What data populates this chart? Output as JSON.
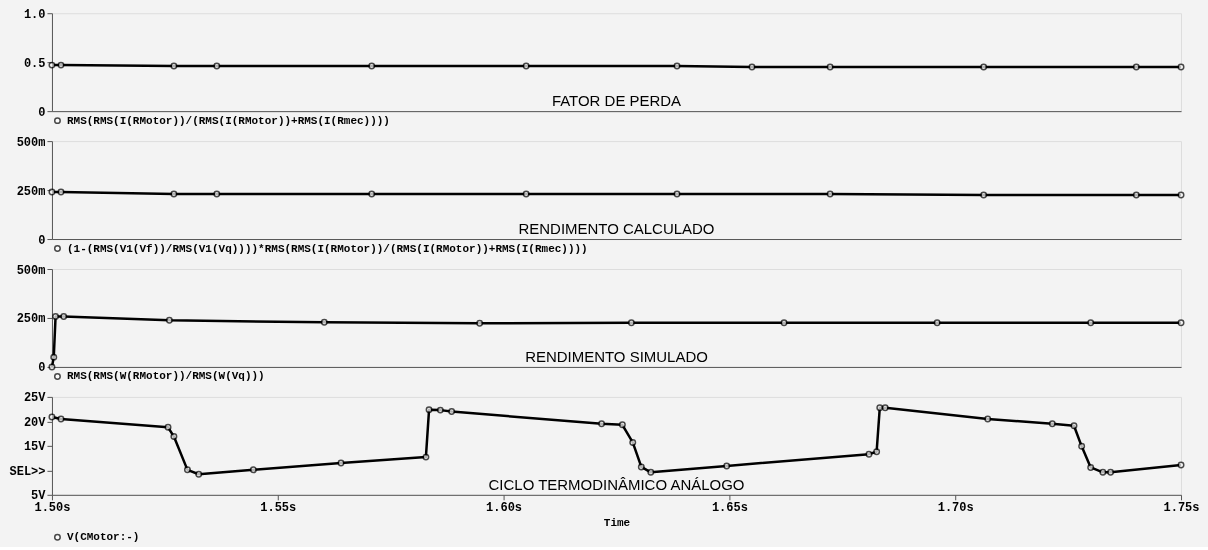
{
  "chart_data": [
    {
      "type": "line",
      "title": "FATOR DE PERDA",
      "x": [
        1.5,
        1.502,
        1.527,
        1.5365,
        1.5708,
        1.605,
        1.6384,
        1.655,
        1.6723,
        1.7063,
        1.7401,
        1.75
      ],
      "series": [
        {
          "name": "RMS(RMS(I(RMotor))/(RMS(I(RMotor))+RMS(I(Rmec))))",
          "color": "#000000",
          "values": [
            0.47,
            0.47,
            0.46,
            0.46,
            0.46,
            0.46,
            0.46,
            0.45,
            0.45,
            0.45,
            0.45,
            0.45
          ]
        }
      ],
      "xlim": [
        1.5,
        1.75
      ],
      "ylim": [
        0,
        1
      ],
      "yticks": [
        0,
        0.5,
        {
          "value": 1,
          "label": "1.0"
        }
      ],
      "tick_labels": "y",
      "grid": false,
      "legend": "bottom",
      "marker": "circle",
      "line_style": "solid"
    },
    {
      "type": "line",
      "title": "RENDIMENTO CALCULADO",
      "x": [
        1.5,
        1.502,
        1.527,
        1.5365,
        1.5708,
        1.605,
        1.6384,
        1.6723,
        1.7063,
        1.7401,
        1.75
      ],
      "series": [
        {
          "name": "(1-(RMS(V1(Vf))/RMS(V1(Vq))))*RMS(RMS(I(RMotor))/(RMS(I(RMotor))+RMS(I(Rmec))))",
          "color": "#000000",
          "values": [
            240,
            240,
            230,
            230,
            230,
            230,
            230,
            230,
            225,
            225,
            225
          ]
        }
      ],
      "xlim": [
        1.5,
        1.75
      ],
      "ylim": [
        0,
        500
      ],
      "yticks": [
        0,
        {
          "value": 250,
          "label": "250m"
        },
        {
          "value": 500,
          "label": "500m"
        }
      ],
      "tick_labels": "y",
      "grid": false,
      "legend": "bottom",
      "marker": "circle",
      "line_style": "solid"
    },
    {
      "type": "line",
      "title": "RENDIMENTO SIMULADO",
      "x": [
        1.5,
        1.5004,
        1.5008,
        1.5026,
        1.526,
        1.5603,
        1.5947,
        1.6283,
        1.6621,
        1.696,
        1.73,
        1.75
      ],
      "series": [
        {
          "name": "RMS(RMS(W(RMotor))/RMS(W(Vq)))",
          "color": "#000000",
          "values": [
            0,
            50,
            257,
            257,
            238,
            228,
            223,
            225,
            225,
            225,
            225,
            225
          ]
        }
      ],
      "xlim": [
        1.5,
        1.75
      ],
      "ylim": [
        0,
        500
      ],
      "yticks": [
        0,
        {
          "value": 250,
          "label": "250m"
        },
        {
          "value": 500,
          "label": "500m"
        }
      ],
      "tick_labels": "y",
      "grid": false,
      "legend": "bottom",
      "marker": "circle",
      "line_style": "solid"
    },
    {
      "type": "line",
      "title": "CICLO TERMODINÂMICO ANÁLOGO",
      "xlabel": "Time",
      "x": [
        1.5,
        1.502,
        1.5257,
        1.527,
        1.53,
        1.5325,
        1.5446,
        1.564,
        1.5828,
        1.5835,
        1.586,
        1.5885,
        1.6217,
        1.6263,
        1.6286,
        1.6305,
        1.6326,
        1.6494,
        1.6809,
        1.6826,
        1.6833,
        1.6845,
        1.7072,
        1.7215,
        1.7263,
        1.728,
        1.73,
        1.7327,
        1.7344,
        1.75
      ],
      "series": [
        {
          "name": "V(CMotor:-)",
          "color": "#000000",
          "values": [
            20.9,
            20.5,
            18.8,
            16.9,
            10.1,
            9.2,
            10.1,
            11.5,
            12.7,
            22.4,
            22.3,
            22.0,
            19.5,
            19.3,
            15.7,
            10.7,
            9.6,
            10.9,
            13.3,
            13.8,
            22.8,
            22.8,
            20.5,
            19.5,
            19.1,
            14.9,
            10.6,
            9.6,
            9.6,
            11.1
          ]
        }
      ],
      "xlim": [
        1.5,
        1.75
      ],
      "ylim": [
        5,
        25
      ],
      "yticks": [
        {
          "value": 5,
          "label": "5V"
        },
        {
          "value": 10,
          "label": "SEL>>"
        },
        {
          "value": 15,
          "label": "15V"
        },
        {
          "value": 20,
          "label": "20V"
        },
        {
          "value": 25,
          "label": "25V"
        }
      ],
      "xticks": [
        {
          "value": 1.5,
          "label": "1.50s"
        },
        {
          "value": 1.55,
          "label": "1.55s"
        },
        {
          "value": 1.6,
          "label": "1.60s"
        },
        {
          "value": 1.65,
          "label": "1.65s"
        },
        {
          "value": 1.7,
          "label": "1.70s"
        },
        {
          "value": 1.75,
          "label": "1.75s"
        }
      ],
      "grid": false,
      "legend": "bottom",
      "marker": "circle",
      "line_style": "solid"
    }
  ]
}
